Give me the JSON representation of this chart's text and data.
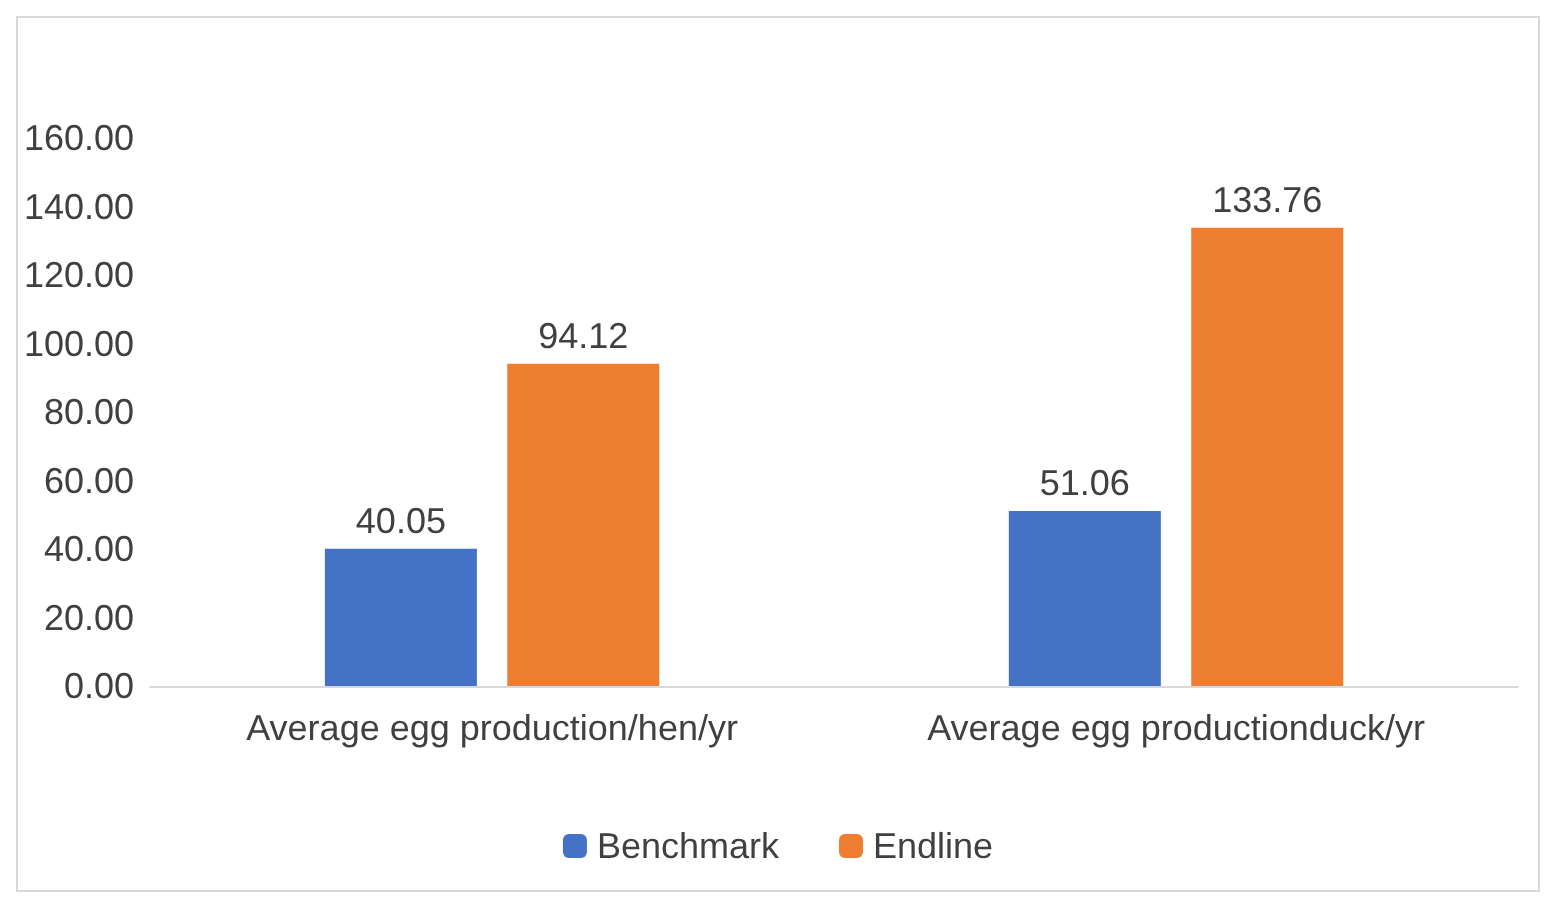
{
  "chart_data": {
    "type": "bar",
    "categories": [
      "Average egg production/hen/yr",
      "Average egg productionduck/yr"
    ],
    "series": [
      {
        "name": "Benchmark",
        "color": "#4472c4",
        "values": [
          40.05,
          51.06
        ]
      },
      {
        "name": "Endline",
        "color": "#ed7d31",
        "values": [
          94.12,
          133.76
        ]
      }
    ],
    "ylim": [
      0,
      160
    ],
    "yticks": [
      {
        "value": 0,
        "label": "0.00"
      },
      {
        "value": 20,
        "label": "20.00"
      },
      {
        "value": 40,
        "label": "40.00"
      },
      {
        "value": 60,
        "label": "60.00"
      },
      {
        "value": 80,
        "label": "80.00"
      },
      {
        "value": 100,
        "label": "100.00"
      },
      {
        "value": 120,
        "label": "120.00"
      },
      {
        "value": 140,
        "label": "140.00"
      },
      {
        "value": 160,
        "label": "160.00"
      }
    ],
    "grid": false,
    "legend": "bottom",
    "data_labels": true
  }
}
